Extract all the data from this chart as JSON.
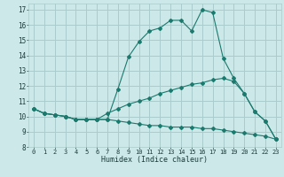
{
  "xlabel": "Humidex (Indice chaleur)",
  "bg_color": "#cce8e8",
  "grid_color": "#aacccc",
  "line_color": "#1a7a6e",
  "xlim": [
    -0.5,
    23.5
  ],
  "ylim": [
    8,
    17.4
  ],
  "yticks": [
    8,
    9,
    10,
    11,
    12,
    13,
    14,
    15,
    16,
    17
  ],
  "xticks": [
    0,
    1,
    2,
    3,
    4,
    5,
    6,
    7,
    8,
    9,
    10,
    11,
    12,
    13,
    14,
    15,
    16,
    17,
    18,
    19,
    20,
    21,
    22,
    23
  ],
  "series": [
    {
      "x": [
        0,
        1,
        2,
        3,
        4,
        5,
        6,
        7,
        8,
        9,
        10,
        11,
        12,
        13,
        14,
        15,
        16,
        17,
        18,
        19,
        20,
        21,
        22,
        23
      ],
      "y": [
        10.5,
        10.2,
        10.1,
        10.0,
        9.8,
        9.8,
        9.8,
        9.8,
        11.8,
        13.9,
        14.9,
        15.6,
        15.8,
        16.3,
        16.3,
        15.6,
        17.0,
        16.8,
        13.8,
        12.5,
        11.5,
        10.3,
        9.7,
        8.5
      ]
    },
    {
      "x": [
        0,
        1,
        2,
        3,
        4,
        5,
        6,
        7,
        8,
        9,
        10,
        11,
        12,
        13,
        14,
        15,
        16,
        17,
        18,
        19,
        20,
        21,
        22,
        23
      ],
      "y": [
        10.5,
        10.2,
        10.1,
        10.0,
        9.8,
        9.8,
        9.8,
        10.2,
        10.5,
        10.8,
        11.0,
        11.2,
        11.5,
        11.7,
        11.9,
        12.1,
        12.2,
        12.4,
        12.5,
        12.3,
        11.5,
        10.3,
        9.7,
        8.5
      ]
    },
    {
      "x": [
        0,
        1,
        2,
        3,
        4,
        5,
        6,
        7,
        8,
        9,
        10,
        11,
        12,
        13,
        14,
        15,
        16,
        17,
        18,
        19,
        20,
        21,
        22,
        23
      ],
      "y": [
        10.5,
        10.2,
        10.1,
        10.0,
        9.8,
        9.8,
        9.8,
        9.8,
        9.7,
        9.6,
        9.5,
        9.4,
        9.4,
        9.3,
        9.3,
        9.3,
        9.2,
        9.2,
        9.1,
        9.0,
        8.9,
        8.8,
        8.7,
        8.5
      ]
    }
  ]
}
